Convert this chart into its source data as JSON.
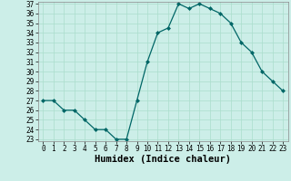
{
  "x": [
    0,
    1,
    2,
    3,
    4,
    5,
    6,
    7,
    8,
    9,
    10,
    11,
    12,
    13,
    14,
    15,
    16,
    17,
    18,
    19,
    20,
    21,
    22,
    23
  ],
  "y": [
    27,
    27,
    26,
    26,
    25,
    24,
    24,
    23,
    23,
    27,
    31,
    34,
    34.5,
    37,
    36.5,
    37,
    36.5,
    36,
    35,
    33,
    32,
    30,
    29,
    28
  ],
  "line_color": "#006666",
  "marker_color": "#006666",
  "bg_color": "#cceee8",
  "grid_color": "#aaddcc",
  "xlabel": "Humidex (Indice chaleur)",
  "ylim": [
    23,
    37
  ],
  "xlim": [
    -0.5,
    23.5
  ],
  "yticks": [
    23,
    24,
    25,
    26,
    27,
    28,
    29,
    30,
    31,
    32,
    33,
    34,
    35,
    36,
    37
  ],
  "xticks": [
    0,
    1,
    2,
    3,
    4,
    5,
    6,
    7,
    8,
    9,
    10,
    11,
    12,
    13,
    14,
    15,
    16,
    17,
    18,
    19,
    20,
    21,
    22,
    23
  ],
  "xlabel_fontsize": 7.5,
  "tick_fontsize": 5.5
}
